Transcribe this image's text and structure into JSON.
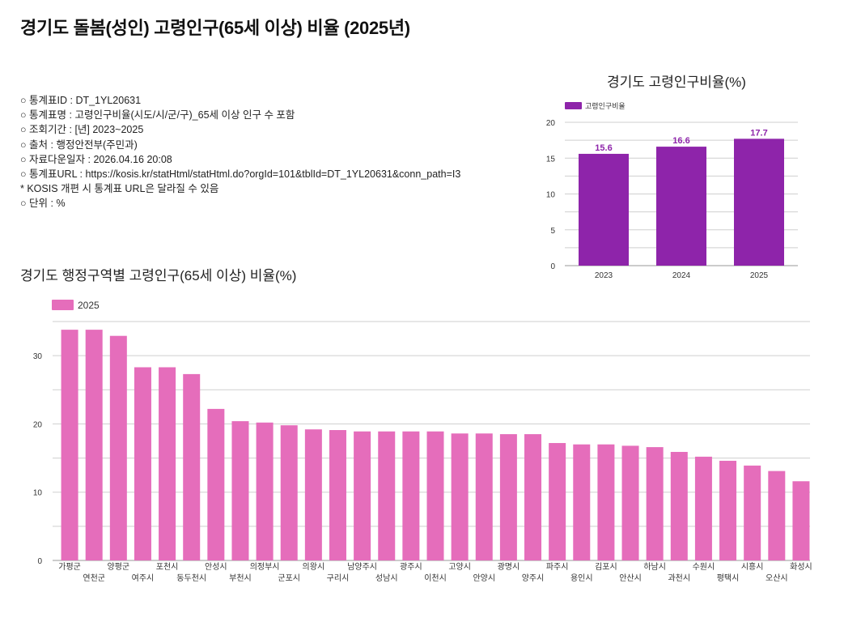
{
  "page": {
    "title": "경기도 돌봄(성인) 고령인구(65세 이상) 비율 (2025년)"
  },
  "meta": {
    "lines": [
      "○ 통계표ID : DT_1YL20631",
      "○ 통계표명 : 고령인구비율(시도/시/군/구)_65세 이상 인구 수 포함",
      "○ 조회기간 : [년] 2023~2025",
      "○ 출처 : 행정안전부(주민과)",
      "○ 자료다운일자 : 2026.04.16 20:08",
      "○ 통계표URL : https://kosis.kr/statHtml/statHtml.do?orgId=101&tblId=DT_1YL20631&conn_path=I3",
      " * KOSIS 개편 시 통계표 URL은 달라질 수 있음",
      "○ 단위 : %"
    ]
  },
  "colors": {
    "purple": "#8e24aa",
    "pink": "#e56dbb",
    "grid": "#cccccc",
    "axis": "#999999"
  },
  "chart_data": [
    {
      "type": "bar",
      "title": "경기도 고령인구비율(%)",
      "legend": [
        "고령인구비율"
      ],
      "legend_position": "top-left",
      "categories": [
        "2023",
        "2024",
        "2025"
      ],
      "values": [
        15.6,
        16.6,
        17.7
      ],
      "data_labels": [
        "15.6",
        "16.6",
        "17.7"
      ],
      "ylim": [
        0,
        20
      ],
      "yticks": [
        0,
        5,
        10,
        15,
        20
      ],
      "minor_gridlines": true,
      "xlabel": "",
      "ylabel": ""
    },
    {
      "type": "bar",
      "title": "경기도 행정구역별 고령인구(65세 이상) 비율(%)",
      "legend": [
        "2025"
      ],
      "legend_position": "top-left",
      "categories": [
        "가평군",
        "연천군",
        "양평군",
        "여주시",
        "포천시",
        "동두천시",
        "안성시",
        "부천시",
        "의정부시",
        "군포시",
        "의왕시",
        "구리시",
        "남양주시",
        "성남시",
        "광주시",
        "이천시",
        "고양시",
        "안양시",
        "광명시",
        "양주시",
        "파주시",
        "용인시",
        "김포시",
        "안산시",
        "하남시",
        "과천시",
        "수원시",
        "평택시",
        "시흥시",
        "오산시",
        "화성시"
      ],
      "series": [
        {
          "name": "2025",
          "values": [
            33.8,
            33.8,
            32.9,
            28.3,
            28.3,
            27.3,
            22.2,
            20.4,
            20.2,
            19.8,
            19.2,
            19.1,
            18.9,
            18.9,
            18.9,
            18.9,
            18.6,
            18.6,
            18.5,
            18.5,
            17.2,
            17.0,
            17.0,
            16.8,
            16.6,
            15.9,
            15.2,
            14.6,
            13.9,
            13.1,
            11.6
          ]
        }
      ],
      "ylim": [
        0,
        35
      ],
      "yticks": [
        0,
        10,
        20,
        30
      ],
      "minor_gridlines": true,
      "xlabel": "",
      "ylabel": ""
    }
  ]
}
